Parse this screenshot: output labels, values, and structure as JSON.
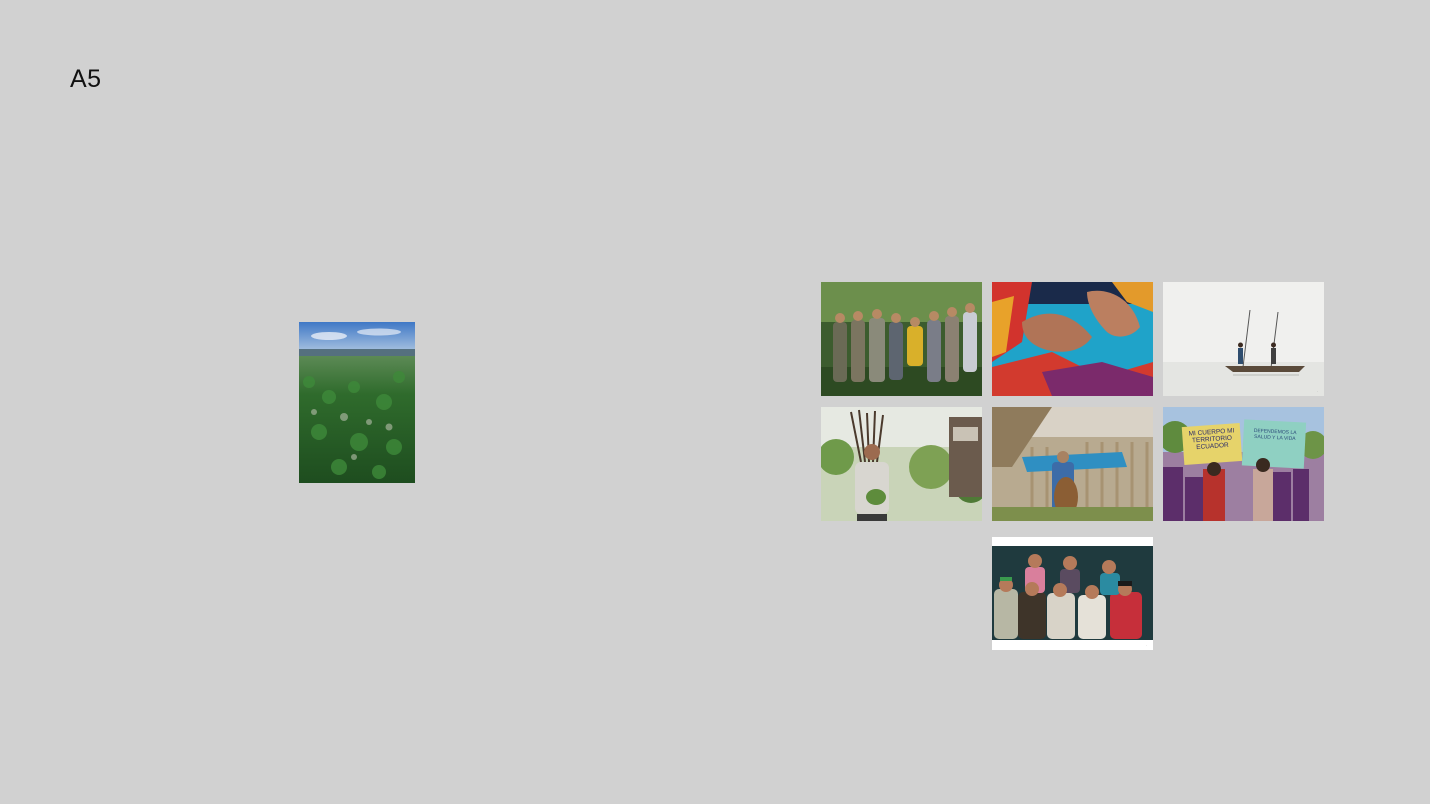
{
  "page": {
    "label": "A5"
  },
  "images": [
    {
      "name": "forest-aerial-photo",
      "subject": "aerial view of dense forest under blue sky"
    },
    {
      "name": "community-group-photo",
      "subject": "group of people standing in vegetation"
    },
    {
      "name": "embroidery-hands-photo",
      "subject": "hands sewing colorful textile"
    },
    {
      "name": "canoe-fishing-photo",
      "subject": "two people fishing from a canoe on misty water"
    },
    {
      "name": "firewood-carrier-photo",
      "subject": "person carrying firewood bundle"
    },
    {
      "name": "bamboo-house-photo",
      "subject": "person with basket near bamboo structure"
    },
    {
      "name": "protest-march-photo",
      "subject": "women marching with hand-lettered signs"
    },
    {
      "name": "women-group-photo",
      "subject": "group of women posing in front of a blackboard"
    }
  ],
  "protest_signs": {
    "left_sign": "MI CUERPO MI TERRITORIO ECUADOR",
    "right_sign": "DEFENDEMOS LA SALUD Y LA VIDA"
  }
}
